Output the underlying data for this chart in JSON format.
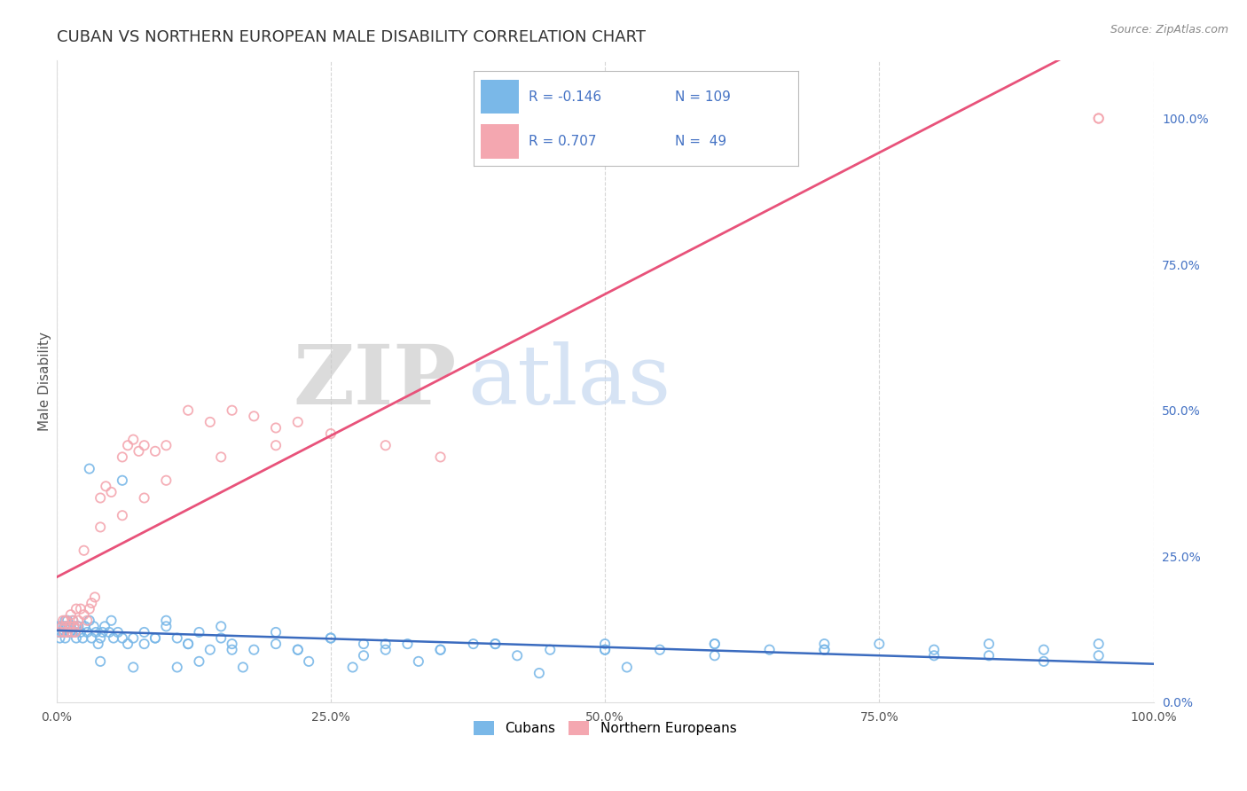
{
  "title": "CUBAN VS NORTHERN EUROPEAN MALE DISABILITY CORRELATION CHART",
  "source_text": "Source: ZipAtlas.com",
  "ylabel": "Male Disability",
  "watermark_zip": "ZIP",
  "watermark_atlas": "atlas",
  "cubans": {
    "R": -0.146,
    "N": 109,
    "color": "#7ab8e8",
    "line_color": "#3a6bbf",
    "x": [
      0.001,
      0.002,
      0.003,
      0.004,
      0.004,
      0.005,
      0.006,
      0.007,
      0.007,
      0.008,
      0.008,
      0.009,
      0.01,
      0.01,
      0.011,
      0.012,
      0.013,
      0.014,
      0.015,
      0.016,
      0.017,
      0.018,
      0.019,
      0.02,
      0.022,
      0.024,
      0.026,
      0.028,
      0.03,
      0.032,
      0.034,
      0.036,
      0.038,
      0.04,
      0.042,
      0.044,
      0.048,
      0.052,
      0.056,
      0.06,
      0.065,
      0.07,
      0.08,
      0.09,
      0.1,
      0.11,
      0.12,
      0.13,
      0.14,
      0.15,
      0.16,
      0.18,
      0.2,
      0.22,
      0.25,
      0.28,
      0.3,
      0.32,
      0.35,
      0.38,
      0.4,
      0.45,
      0.5,
      0.55,
      0.6,
      0.65,
      0.7,
      0.75,
      0.8,
      0.85,
      0.9,
      0.95,
      0.05,
      0.08,
      0.1,
      0.15,
      0.2,
      0.25,
      0.3,
      0.4,
      0.5,
      0.6,
      0.7,
      0.03,
      0.06,
      0.09,
      0.12,
      0.16,
      0.22,
      0.28,
      0.35,
      0.42,
      0.5,
      0.6,
      0.7,
      0.8,
      0.85,
      0.9,
      0.95,
      0.04,
      0.07,
      0.11,
      0.13,
      0.17,
      0.23,
      0.27,
      0.33,
      0.44,
      0.52
    ],
    "y": [
      0.13,
      0.12,
      0.11,
      0.13,
      0.12,
      0.13,
      0.12,
      0.13,
      0.12,
      0.14,
      0.11,
      0.13,
      0.14,
      0.12,
      0.13,
      0.12,
      0.13,
      0.12,
      0.14,
      0.13,
      0.12,
      0.11,
      0.13,
      0.13,
      0.12,
      0.11,
      0.13,
      0.12,
      0.14,
      0.11,
      0.13,
      0.12,
      0.1,
      0.11,
      0.12,
      0.13,
      0.12,
      0.11,
      0.12,
      0.11,
      0.1,
      0.11,
      0.1,
      0.11,
      0.13,
      0.11,
      0.1,
      0.12,
      0.09,
      0.11,
      0.1,
      0.09,
      0.1,
      0.09,
      0.11,
      0.1,
      0.09,
      0.1,
      0.09,
      0.1,
      0.1,
      0.09,
      0.1,
      0.09,
      0.1,
      0.09,
      0.1,
      0.1,
      0.09,
      0.1,
      0.09,
      0.1,
      0.14,
      0.12,
      0.14,
      0.13,
      0.12,
      0.11,
      0.1,
      0.1,
      0.09,
      0.1,
      0.09,
      0.4,
      0.38,
      0.11,
      0.1,
      0.09,
      0.09,
      0.08,
      0.09,
      0.08,
      0.09,
      0.08,
      0.09,
      0.08,
      0.08,
      0.07,
      0.08,
      0.07,
      0.06,
      0.06,
      0.07,
      0.06,
      0.07,
      0.06,
      0.07,
      0.05,
      0.06
    ]
  },
  "northern_europeans": {
    "R": 0.707,
    "N": 49,
    "color": "#f4a7b0",
    "line_color": "#e8527a",
    "x": [
      0.003,
      0.005,
      0.006,
      0.007,
      0.008,
      0.009,
      0.01,
      0.012,
      0.013,
      0.014,
      0.015,
      0.016,
      0.017,
      0.018,
      0.019,
      0.02,
      0.022,
      0.025,
      0.028,
      0.03,
      0.032,
      0.035,
      0.04,
      0.045,
      0.05,
      0.06,
      0.065,
      0.07,
      0.075,
      0.08,
      0.09,
      0.1,
      0.12,
      0.14,
      0.16,
      0.18,
      0.2,
      0.22,
      0.25,
      0.3,
      0.35,
      0.025,
      0.04,
      0.06,
      0.08,
      0.1,
      0.15,
      0.2,
      0.95
    ],
    "y": [
      0.12,
      0.13,
      0.14,
      0.12,
      0.13,
      0.14,
      0.12,
      0.13,
      0.15,
      0.12,
      0.14,
      0.13,
      0.12,
      0.16,
      0.13,
      0.14,
      0.16,
      0.15,
      0.14,
      0.16,
      0.17,
      0.18,
      0.35,
      0.37,
      0.36,
      0.42,
      0.44,
      0.45,
      0.43,
      0.44,
      0.43,
      0.44,
      0.5,
      0.48,
      0.5,
      0.49,
      0.47,
      0.48,
      0.46,
      0.44,
      0.42,
      0.26,
      0.3,
      0.32,
      0.35,
      0.38,
      0.42,
      0.44,
      1.0
    ]
  },
  "xlim": [
    0.0,
    1.0
  ],
  "ylim": [
    0.0,
    1.1
  ],
  "xticks": [
    0.0,
    0.25,
    0.5,
    0.75,
    1.0
  ],
  "xtick_labels": [
    "0.0%",
    "25.0%",
    "50.0%",
    "75.0%",
    "100.0%"
  ],
  "yticks_right": [
    0.0,
    0.25,
    0.5,
    0.75,
    1.0
  ],
  "ytick_labels_right": [
    "0.0%",
    "25.0%",
    "50.0%",
    "75.0%",
    "100.0%"
  ],
  "grid_color": "#cccccc",
  "background_color": "#ffffff",
  "title_color": "#333333",
  "title_fontsize": 13,
  "axis_label_color": "#555555",
  "legend_r_color": "#4472c4",
  "legend_n_color": "#4472c4",
  "tick_color": "#555555"
}
